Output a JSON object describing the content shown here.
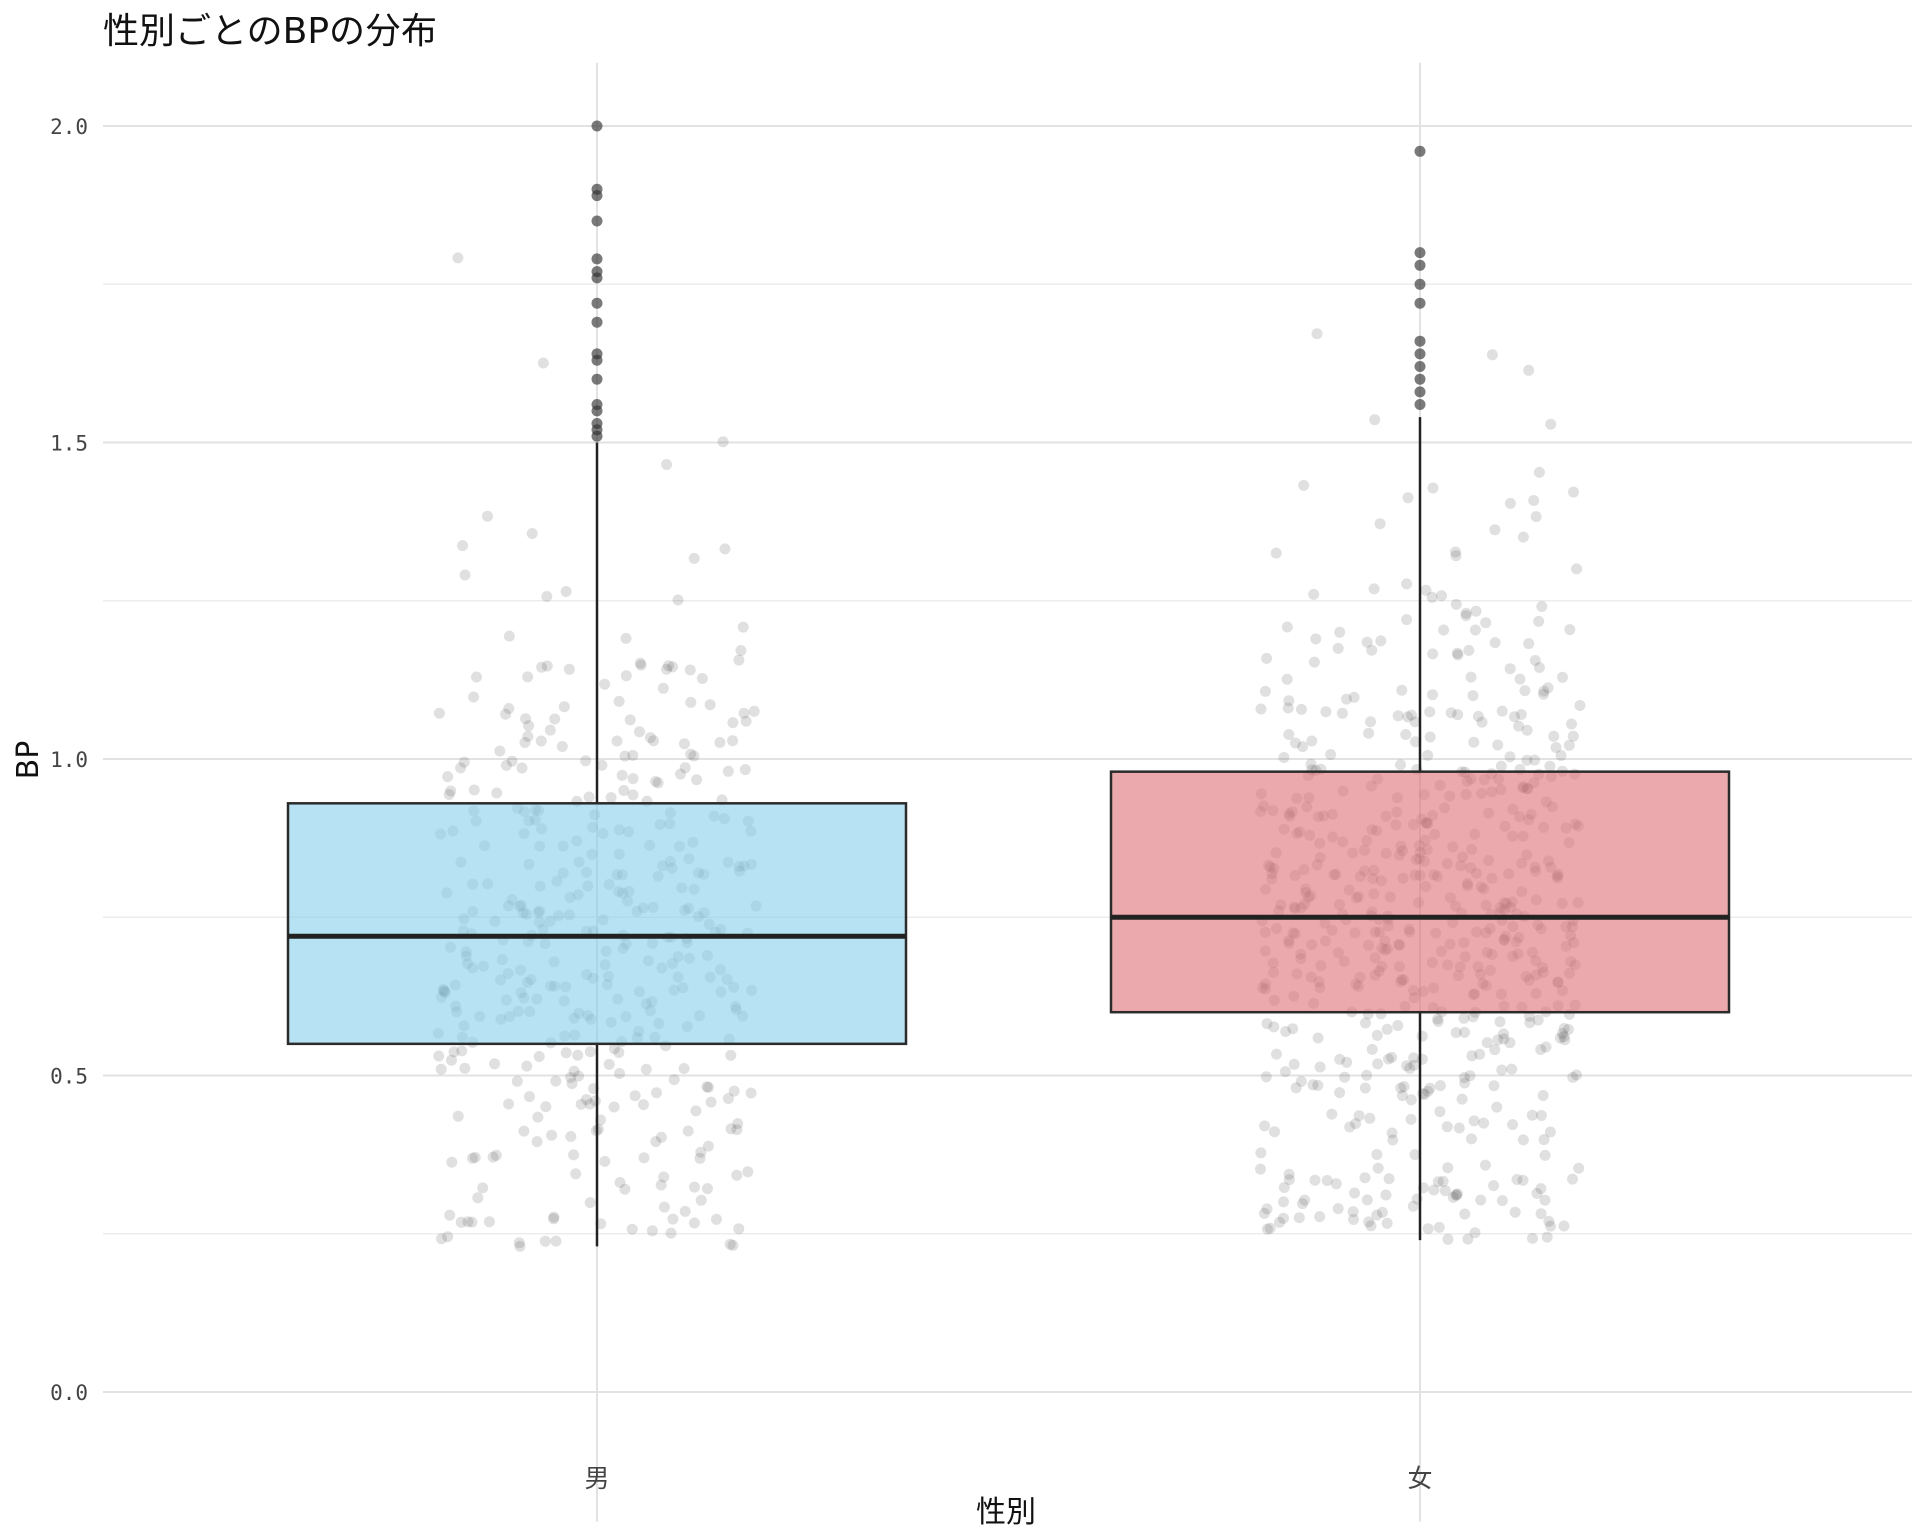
{
  "chart_data": {
    "type": "box",
    "title": "性別ごとのBPの分布",
    "xlabel": "性別",
    "ylabel": "BP",
    "ylim": [
      -0.1,
      2.1
    ],
    "yticks": [
      0.0,
      0.5,
      1.0,
      1.5,
      2.0
    ],
    "ytick_labels": [
      "0.0",
      "0.5",
      "1.0",
      "1.5",
      "2.0"
    ],
    "categories": [
      "男",
      "女"
    ],
    "grid": true,
    "legend": "none",
    "series": [
      {
        "category": "男",
        "color": "#87ceeb",
        "whisker_low": 0.23,
        "q1": 0.55,
        "median": 0.72,
        "q3": 0.93,
        "whisker_high": 1.5,
        "outliers": [
          1.51,
          1.52,
          1.53,
          1.55,
          1.56,
          1.6,
          1.63,
          1.64,
          1.69,
          1.72,
          1.76,
          1.77,
          1.79,
          1.85,
          1.89,
          1.9,
          2.0
        ],
        "jitter_range": [
          0.23,
          1.9
        ],
        "jitter_count": 400
      },
      {
        "category": "女",
        "color": "#de6f77",
        "whisker_low": 0.24,
        "q1": 0.6,
        "median": 0.75,
        "q3": 0.98,
        "whisker_high": 1.54,
        "outliers": [
          1.56,
          1.58,
          1.6,
          1.62,
          1.64,
          1.66,
          1.72,
          1.75,
          1.78,
          1.8,
          1.96
        ],
        "jitter_range": [
          0.24,
          1.8
        ],
        "jitter_count": 600
      }
    ]
  }
}
